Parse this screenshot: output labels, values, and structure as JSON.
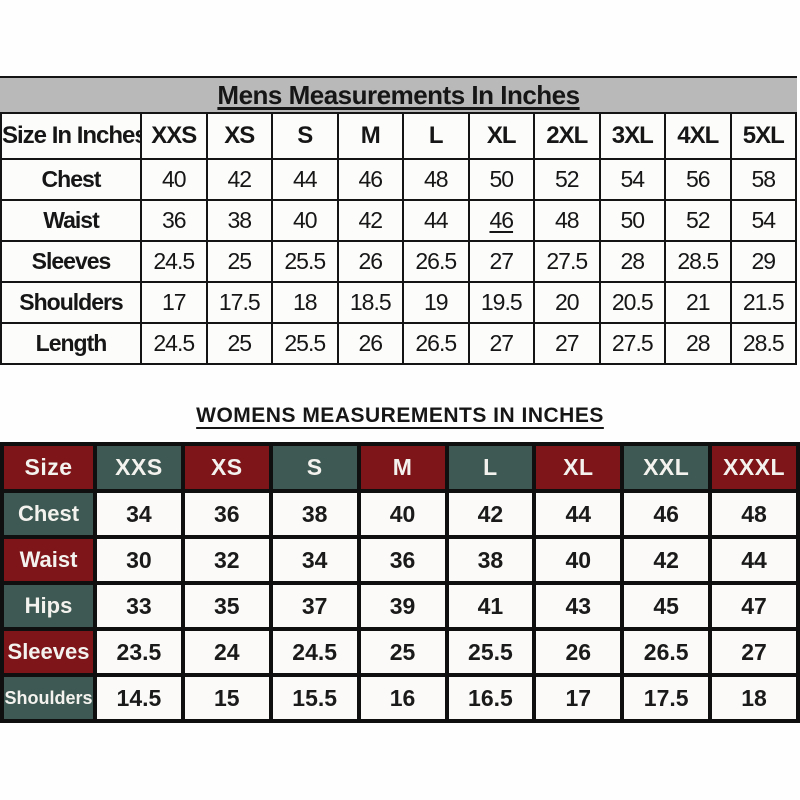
{
  "page": {
    "background": "#ffffff"
  },
  "chart_data": [
    {
      "type": "table",
      "name": "mens-size-chart",
      "title": "Mens Measurements In Inches",
      "title_band_color": "#b9b9b9",
      "columns": [
        "Size In Inches",
        "XXS",
        "XS",
        "S",
        "M",
        "L",
        "XL",
        "2XL",
        "3XL",
        "4XL",
        "5XL"
      ],
      "rows": [
        {
          "label": "Chest",
          "values": [
            "40",
            "42",
            "44",
            "46",
            "48",
            "50",
            "52",
            "54",
            "56",
            "58"
          ]
        },
        {
          "label": "Waist",
          "values": [
            "36",
            "38",
            "40",
            "42",
            "44",
            "46",
            "48",
            "50",
            "52",
            "54"
          ]
        },
        {
          "label": "Sleeves",
          "values": [
            "24.5",
            "25",
            "25.5",
            "26",
            "26.5",
            "27",
            "27.5",
            "28",
            "28.5",
            "29"
          ]
        },
        {
          "label": "Shoulders",
          "values": [
            "17",
            "17.5",
            "18",
            "18.5",
            "19",
            "19.5",
            "20",
            "20.5",
            "21",
            "21.5"
          ]
        },
        {
          "label": "Length",
          "values": [
            "24.5",
            "25",
            "25.5",
            "26",
            "26.5",
            "27",
            "27",
            "27.5",
            "28",
            "28.5"
          ]
        }
      ],
      "underlined_cell": {
        "row_label": "Waist",
        "column": "XL"
      }
    },
    {
      "type": "table",
      "name": "womens-size-chart",
      "title": "WOMENS MEASUREMENTS IN INCHES",
      "style": {
        "maroon": "#7E1518",
        "teal": "#3E5953",
        "header_pattern": "alternating maroon/teal checkerboard on header row and label column",
        "text_on_color": "#f4f2ee"
      },
      "columns": [
        "Size",
        "XXS",
        "XS",
        "S",
        "M",
        "L",
        "XL",
        "XXL",
        "XXXL"
      ],
      "rows": [
        {
          "label": "Chest",
          "values": [
            "34",
            "36",
            "38",
            "40",
            "42",
            "44",
            "46",
            "48"
          ]
        },
        {
          "label": "Waist",
          "values": [
            "30",
            "32",
            "34",
            "36",
            "38",
            "40",
            "42",
            "44"
          ]
        },
        {
          "label": "Hips",
          "values": [
            "33",
            "35",
            "37",
            "39",
            "41",
            "43",
            "45",
            "47"
          ]
        },
        {
          "label": "Sleeves",
          "values": [
            "23.5",
            "24",
            "24.5",
            "25",
            "25.5",
            "26",
            "26.5",
            "27"
          ]
        },
        {
          "label": "Shoulders",
          "values": [
            "14.5",
            "15",
            "15.5",
            "16",
            "16.5",
            "17",
            "17.5",
            "18"
          ]
        }
      ]
    }
  ]
}
